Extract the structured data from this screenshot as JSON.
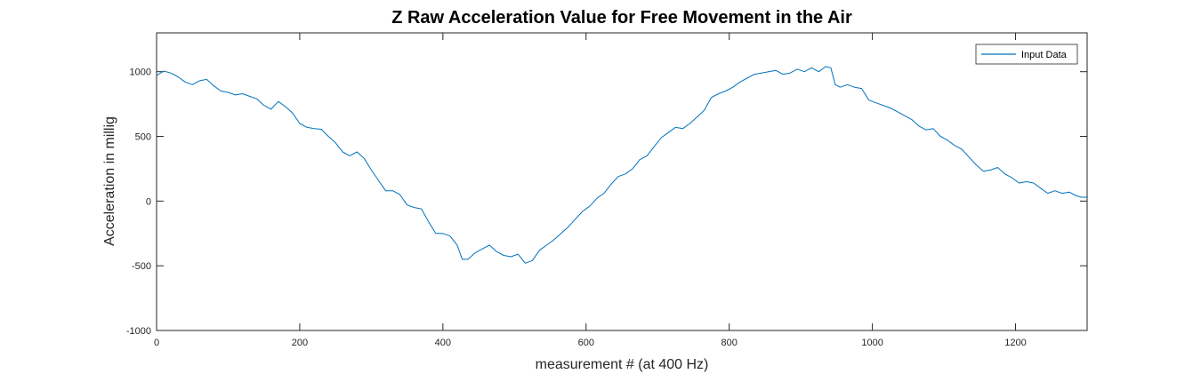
{
  "chart_data": {
    "type": "line",
    "title": "Z Raw Acceleration Value for Free Movement in the Air",
    "xlabel": "measurement # (at 400 Hz)",
    "ylabel": "Acceleration in millig",
    "xlim": [
      0,
      1300
    ],
    "ylim": [
      -1000,
      1300
    ],
    "xticks": [
      0,
      200,
      400,
      600,
      800,
      1000,
      1200
    ],
    "yticks": [
      -1000,
      -500,
      0,
      500,
      1000
    ],
    "grid": false,
    "legend_position": "top-right",
    "series": [
      {
        "name": "Input Data",
        "color": "#0072BD",
        "x": [
          0,
          10,
          20,
          30,
          40,
          50,
          60,
          70,
          80,
          90,
          100,
          110,
          120,
          130,
          140,
          150,
          160,
          170,
          180,
          190,
          200,
          210,
          220,
          230,
          240,
          250,
          260,
          270,
          280,
          290,
          300,
          310,
          320,
          330,
          340,
          350,
          360,
          370,
          380,
          390,
          400,
          410,
          420,
          427,
          435,
          445,
          455,
          465,
          475,
          485,
          495,
          505,
          515,
          525,
          535,
          545,
          555,
          565,
          575,
          585,
          595,
          605,
          615,
          625,
          635,
          645,
          655,
          665,
          675,
          685,
          695,
          705,
          715,
          725,
          735,
          745,
          755,
          765,
          775,
          785,
          795,
          805,
          815,
          825,
          835,
          845,
          855,
          865,
          875,
          885,
          895,
          905,
          915,
          925,
          935,
          942,
          948,
          955,
          965,
          975,
          985,
          995,
          1005,
          1015,
          1025,
          1035,
          1045,
          1055,
          1065,
          1075,
          1085,
          1095,
          1105,
          1115,
          1125,
          1135,
          1145,
          1155,
          1165,
          1175,
          1185,
          1195,
          1205,
          1215,
          1225,
          1235,
          1245,
          1255,
          1265,
          1275,
          1285,
          1292,
          1300
        ],
        "y": [
          970,
          1005,
          990,
          960,
          920,
          900,
          930,
          940,
          890,
          850,
          840,
          820,
          830,
          810,
          790,
          740,
          710,
          770,
          730,
          680,
          600,
          570,
          560,
          555,
          500,
          450,
          380,
          350,
          380,
          330,
          240,
          160,
          80,
          80,
          50,
          -30,
          -50,
          -60,
          -160,
          -250,
          -250,
          -270,
          -340,
          -450,
          -450,
          -400,
          -370,
          -340,
          -390,
          -420,
          -430,
          -410,
          -480,
          -460,
          -380,
          -340,
          -300,
          -250,
          -200,
          -140,
          -80,
          -40,
          20,
          60,
          130,
          190,
          210,
          250,
          320,
          350,
          420,
          490,
          530,
          570,
          560,
          600,
          650,
          700,
          800,
          830,
          850,
          880,
          920,
          950,
          980,
          990,
          1000,
          1010,
          980,
          990,
          1020,
          1000,
          1030,
          1000,
          1040,
          1030,
          900,
          880,
          900,
          880,
          870,
          780,
          760,
          740,
          720,
          690,
          660,
          630,
          580,
          550,
          560,
          500,
          470,
          430,
          400,
          340,
          280,
          230,
          240,
          260,
          210,
          180,
          140,
          150,
          140,
          100,
          60,
          80,
          60,
          70,
          40,
          30,
          30
        ]
      }
    ]
  }
}
